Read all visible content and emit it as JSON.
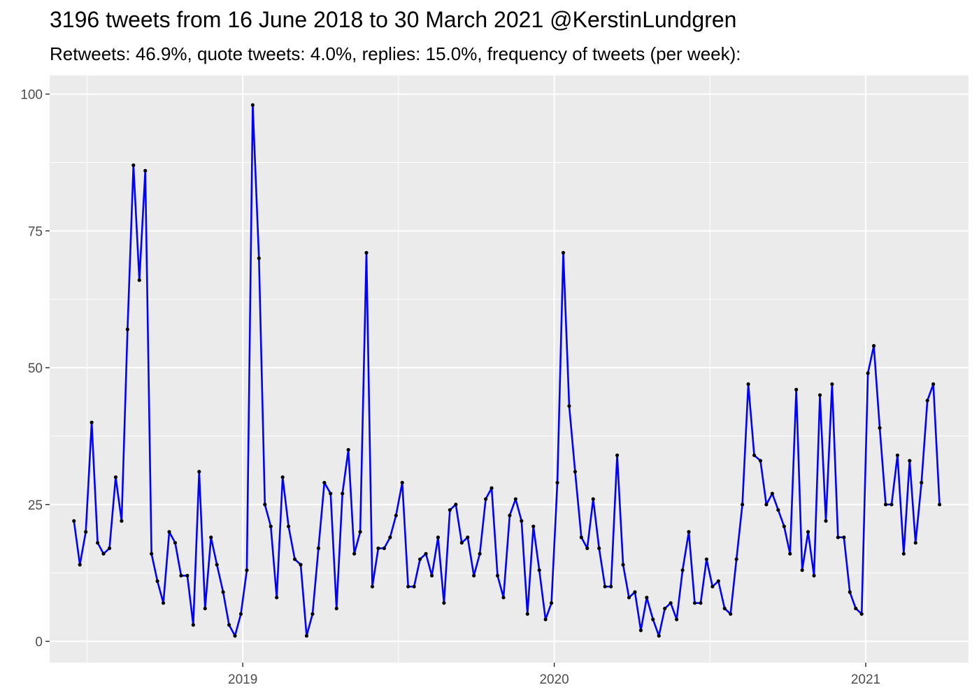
{
  "chart_data": {
    "type": "line",
    "title": "3196 tweets from 16 June 2018 to 30 March 2021 @KerstinLundgren",
    "subtitle": "Retweets: 46.9%, quote tweets: 4.0%, replies: 15.0%, frequency of tweets (per week):",
    "xlabel": "",
    "ylabel": "",
    "ylim": [
      0,
      100
    ],
    "yticks": [
      0,
      25,
      50,
      75,
      100
    ],
    "xticks": [
      "2019",
      "2020",
      "2021"
    ],
    "xlim": [
      2018.38,
      2021.33
    ],
    "grid": true,
    "line_color": "#0000ff",
    "point_color": "#000000",
    "panel_color": "#ebebeb",
    "series": [
      {
        "x": [
          2018.458,
          2018.477,
          2018.496,
          2018.515,
          2018.534,
          2018.553,
          2018.572,
          2018.592,
          2018.611,
          2018.63,
          2018.649,
          2018.668,
          2018.687,
          2018.707,
          2018.726,
          2018.745,
          2018.764,
          2018.783,
          2018.802,
          2018.822,
          2018.841,
          2018.86,
          2018.879,
          2018.898,
          2018.917,
          2018.937,
          2018.956,
          2018.975,
          2018.994,
          2019.013,
          2019.032,
          2019.052,
          2019.071,
          2019.09,
          2019.109,
          2019.128,
          2019.147,
          2019.167,
          2019.186,
          2019.205,
          2019.224,
          2019.243,
          2019.262,
          2019.282,
          2019.301,
          2019.32,
          2019.339,
          2019.358,
          2019.377,
          2019.397,
          2019.416,
          2019.435,
          2019.454,
          2019.473,
          2019.492,
          2019.512,
          2019.531,
          2019.55,
          2019.569,
          2019.588,
          2019.607,
          2019.627,
          2019.646,
          2019.665,
          2019.684,
          2019.703,
          2019.722,
          2019.742,
          2019.761,
          2019.78,
          2019.799,
          2019.818,
          2019.837,
          2019.857,
          2019.876,
          2019.895,
          2019.914,
          2019.933,
          2019.952,
          2019.972,
          2019.991,
          2020.01,
          2020.029,
          2020.048,
          2020.067,
          2020.087,
          2020.106,
          2020.125,
          2020.144,
          2020.163,
          2020.182,
          2020.202,
          2020.221,
          2020.24,
          2020.259,
          2020.278,
          2020.297,
          2020.317,
          2020.336,
          2020.355,
          2020.374,
          2020.393,
          2020.412,
          2020.432,
          2020.451,
          2020.47,
          2020.489,
          2020.508,
          2020.527,
          2020.547,
          2020.566,
          2020.585,
          2020.604,
          2020.623,
          2020.642,
          2020.662,
          2020.681,
          2020.7,
          2020.719,
          2020.738,
          2020.757,
          2020.777,
          2020.796,
          2020.815,
          2020.834,
          2020.853,
          2020.872,
          2020.892,
          2020.911,
          2020.93,
          2020.949,
          2020.968,
          2020.987,
          2021.007,
          2021.026,
          2021.045,
          2021.064,
          2021.083,
          2021.102,
          2021.122,
          2021.141,
          2021.16,
          2021.179,
          2021.198,
          2021.217,
          2021.237
        ],
        "y": [
          22,
          14,
          20,
          40,
          18,
          16,
          17,
          30,
          22,
          57,
          87,
          66,
          86,
          16,
          11,
          7,
          20,
          18,
          12,
          12,
          3,
          31,
          6,
          19,
          14,
          9,
          3,
          1,
          5,
          13,
          98,
          70,
          25,
          21,
          8,
          30,
          21,
          15,
          14,
          1,
          5,
          17,
          29,
          27,
          6,
          27,
          35,
          16,
          20,
          71,
          10,
          17,
          17,
          19,
          23,
          29,
          10,
          10,
          15,
          16,
          12,
          19,
          7,
          24,
          25,
          18,
          19,
          12,
          16,
          26,
          28,
          12,
          8,
          23,
          26,
          22,
          5,
          21,
          13,
          4,
          7,
          29,
          71,
          43,
          31,
          19,
          17,
          26,
          17,
          10,
          10,
          34,
          14,
          8,
          9,
          2,
          8,
          4,
          1,
          6,
          7,
          4,
          13,
          20,
          7,
          7,
          15,
          10,
          11,
          6,
          5,
          15,
          25,
          47,
          34,
          33,
          25,
          27,
          24,
          21,
          16,
          46,
          13,
          20,
          12,
          45,
          22,
          47,
          19,
          19,
          9,
          6,
          5,
          49,
          54,
          39,
          25,
          25,
          34,
          16,
          33,
          18,
          29,
          44,
          47,
          25
        ]
      }
    ]
  }
}
